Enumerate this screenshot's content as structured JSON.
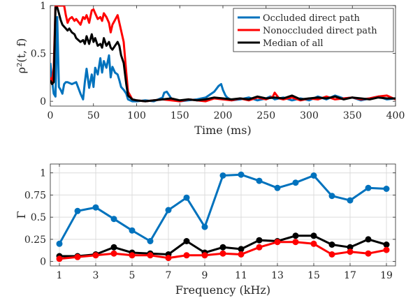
{
  "chart_data": [
    {
      "type": "line",
      "xlabel": "Time (ms)",
      "ylabel": "ρ²(t, f)",
      "xlim": [
        0,
        400
      ],
      "ylim": [
        -0.05,
        1.0
      ],
      "xticks": [
        0,
        50,
        100,
        150,
        200,
        250,
        300,
        350,
        400
      ],
      "yticks": [
        0,
        0.5,
        1
      ],
      "ytick_labels": [
        "0",
        "0.5",
        "1"
      ],
      "grid": false,
      "legend_position": "top-right",
      "series": [
        {
          "name": "Occluded direct path",
          "color": "#0072BD",
          "x": [
            0,
            2,
            4,
            6,
            8,
            10,
            12,
            14,
            16,
            18,
            20,
            25,
            30,
            35,
            38,
            40,
            42,
            45,
            48,
            50,
            52,
            55,
            58,
            60,
            62,
            65,
            68,
            70,
            72,
            75,
            78,
            80,
            82,
            85,
            88,
            90,
            95,
            100,
            110,
            120,
            130,
            132,
            135,
            138,
            140,
            145,
            150,
            160,
            170,
            180,
            190,
            195,
            198,
            200,
            203,
            205,
            210,
            220,
            230,
            240,
            250,
            255,
            260,
            270,
            280,
            290,
            300,
            310,
            320,
            330,
            340,
            350,
            360,
            370,
            380,
            390,
            400
          ],
          "y": [
            0.4,
            0.22,
            0.08,
            0.05,
            0.88,
            0.15,
            0.12,
            0.08,
            0.18,
            0.2,
            0.2,
            0.18,
            0.2,
            0.08,
            0.02,
            0.2,
            0.34,
            0.14,
            0.28,
            0.15,
            0.35,
            0.28,
            0.45,
            0.3,
            0.42,
            0.35,
            0.48,
            0.25,
            0.36,
            0.3,
            0.28,
            0.22,
            0.15,
            0.12,
            0.08,
            0.02,
            0.0,
            0.0,
            0.01,
            0.0,
            0.04,
            0.09,
            0.1,
            0.06,
            0.03,
            0.01,
            0.0,
            0.01,
            0.02,
            0.04,
            0.1,
            0.16,
            0.18,
            0.12,
            0.06,
            0.04,
            0.01,
            0.02,
            0.04,
            0.01,
            0.03,
            0.05,
            0.02,
            0.04,
            0.01,
            0.03,
            0.01,
            0.05,
            0.02,
            0.06,
            0.03,
            0.04,
            0.01,
            0.03,
            0.05,
            0.02,
            0.03
          ]
        },
        {
          "name": "Nonoccluded direct path",
          "color": "#FF0000",
          "x": [
            0,
            2,
            4,
            6,
            8,
            10,
            12,
            14,
            16,
            18,
            20,
            22,
            25,
            28,
            30,
            35,
            38,
            40,
            42,
            45,
            48,
            50,
            52,
            55,
            58,
            60,
            62,
            65,
            68,
            70,
            72,
            75,
            78,
            80,
            82,
            85,
            88,
            90,
            95,
            100,
            110,
            120,
            130,
            140,
            150,
            160,
            170,
            180,
            190,
            200,
            210,
            220,
            230,
            240,
            250,
            258,
            260,
            265,
            270,
            280,
            290,
            300,
            310,
            320,
            330,
            340,
            350,
            360,
            370,
            380,
            390,
            400
          ],
          "y": [
            0.25,
            0.2,
            0.35,
            1.0,
            1.0,
            1.0,
            1.0,
            1.0,
            1.0,
            0.9,
            0.82,
            0.86,
            0.88,
            0.84,
            0.86,
            0.8,
            0.88,
            0.86,
            0.9,
            0.82,
            0.95,
            0.96,
            0.92,
            0.86,
            0.88,
            0.84,
            0.92,
            0.88,
            0.82,
            0.72,
            0.8,
            0.85,
            0.9,
            0.82,
            0.74,
            0.62,
            0.3,
            0.1,
            0.02,
            0.01,
            0.0,
            0.01,
            0.02,
            0.01,
            0.0,
            0.02,
            0.01,
            0.0,
            0.03,
            0.02,
            0.01,
            0.03,
            0.01,
            0.04,
            0.02,
            0.05,
            0.09,
            0.03,
            0.02,
            0.04,
            0.01,
            0.03,
            0.02,
            0.05,
            0.02,
            0.03,
            0.04,
            0.02,
            0.03,
            0.05,
            0.06,
            0.02
          ]
        },
        {
          "name": "Median of all",
          "color": "#000000",
          "x": [
            0,
            2,
            4,
            6,
            8,
            10,
            12,
            14,
            16,
            18,
            20,
            22,
            25,
            28,
            30,
            35,
            38,
            40,
            42,
            45,
            48,
            50,
            52,
            55,
            58,
            60,
            62,
            65,
            68,
            70,
            72,
            75,
            78,
            80,
            82,
            85,
            88,
            90,
            95,
            100,
            110,
            120,
            130,
            140,
            150,
            160,
            170,
            180,
            190,
            200,
            210,
            220,
            230,
            240,
            250,
            260,
            270,
            280,
            290,
            300,
            310,
            320,
            330,
            340,
            350,
            360,
            370,
            380,
            390,
            400
          ],
          "y": [
            0.22,
            0.18,
            0.2,
            0.98,
            0.98,
            0.92,
            0.85,
            0.8,
            0.78,
            0.76,
            0.74,
            0.76,
            0.72,
            0.7,
            0.66,
            0.62,
            0.64,
            0.6,
            0.68,
            0.6,
            0.7,
            0.62,
            0.66,
            0.58,
            0.6,
            0.56,
            0.66,
            0.58,
            0.62,
            0.56,
            0.54,
            0.58,
            0.62,
            0.58,
            0.48,
            0.4,
            0.18,
            0.06,
            0.02,
            0.01,
            0.0,
            0.01,
            0.02,
            0.03,
            0.01,
            0.02,
            0.01,
            0.02,
            0.04,
            0.03,
            0.02,
            0.03,
            0.02,
            0.05,
            0.03,
            0.04,
            0.03,
            0.06,
            0.02,
            0.03,
            0.04,
            0.03,
            0.05,
            0.02,
            0.04,
            0.03,
            0.02,
            0.04,
            0.03,
            0.03
          ]
        }
      ]
    },
    {
      "type": "line",
      "xlabel": "Frequency (kHz)",
      "ylabel": "Γ",
      "xlim": [
        0.5,
        19.5
      ],
      "ylim": [
        -0.05,
        1.1
      ],
      "xticks": [
        1,
        3,
        5,
        7,
        9,
        11,
        13,
        15,
        17,
        19
      ],
      "yticks": [
        0,
        0.25,
        0.5,
        0.75,
        1
      ],
      "ytick_labels": [
        "0",
        "0.25",
        "0.5",
        "0.75",
        "1"
      ],
      "grid": true,
      "markers": true,
      "x": [
        1,
        2,
        3,
        4,
        5,
        6,
        7,
        8,
        9,
        10,
        11,
        12,
        13,
        14,
        15,
        16,
        17,
        18,
        19
      ],
      "series": [
        {
          "color": "#0072BD",
          "values": [
            0.2,
            0.57,
            0.61,
            0.48,
            0.35,
            0.23,
            0.58,
            0.72,
            0.39,
            0.97,
            0.98,
            0.91,
            0.83,
            0.89,
            0.97,
            0.74,
            0.69,
            0.83,
            0.82
          ]
        },
        {
          "color": "#000000",
          "values": [
            0.06,
            0.06,
            0.08,
            0.16,
            0.1,
            0.09,
            0.08,
            0.23,
            0.1,
            0.16,
            0.14,
            0.24,
            0.23,
            0.29,
            0.29,
            0.19,
            0.16,
            0.25,
            0.19
          ]
        },
        {
          "color": "#FF0000",
          "values": [
            0.03,
            0.05,
            0.07,
            0.09,
            0.07,
            0.07,
            0.04,
            0.07,
            0.07,
            0.09,
            0.08,
            0.16,
            0.22,
            0.22,
            0.2,
            0.08,
            0.11,
            0.09,
            0.13
          ]
        }
      ]
    }
  ]
}
